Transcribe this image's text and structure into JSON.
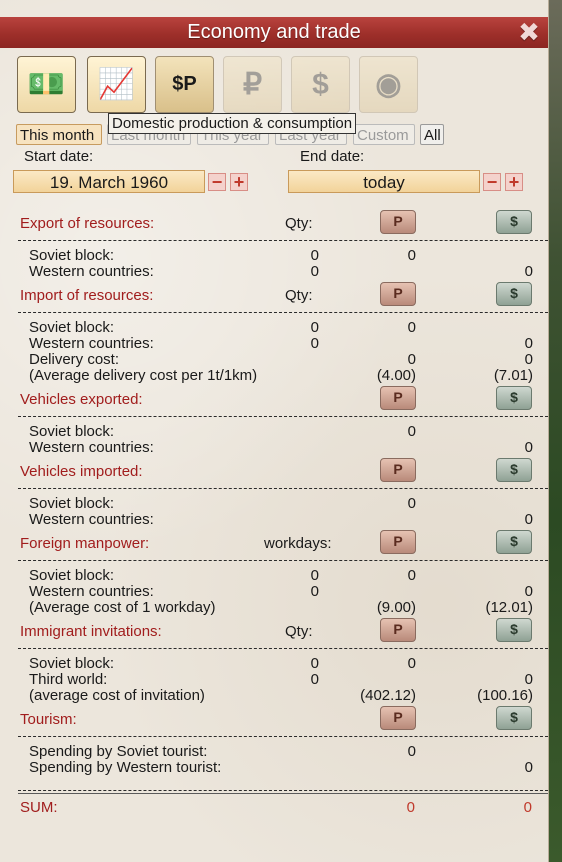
{
  "window": {
    "title": "Economy and trade",
    "close_glyph": "✖"
  },
  "tabs": [
    {
      "name": "money-icon",
      "glyph": "💵",
      "state": "active"
    },
    {
      "name": "domestic-production-icon",
      "glyph": "📈",
      "state": "hover"
    },
    {
      "name": "price-tags-icon",
      "glyph": "$P",
      "state": "normal"
    },
    {
      "name": "rouble-icon",
      "glyph": "₽",
      "state": "dim"
    },
    {
      "name": "dollar-icon",
      "glyph": "$",
      "state": "dim"
    },
    {
      "name": "roulette-icon",
      "glyph": "◉",
      "state": "dim"
    }
  ],
  "tooltip": "Domestic production & consumption",
  "range_buttons": [
    "This month",
    "Last month",
    "This year",
    "Last year",
    "Custom",
    "All"
  ],
  "dates": {
    "start_label": "Start date:",
    "end_label": "End date:",
    "start_value": "19. March 1960",
    "end_value": "today",
    "minus": "−",
    "plus": "+"
  },
  "icons": {
    "rouble": "P",
    "dollar": "$"
  },
  "sections": [
    {
      "title": "Export of resources:",
      "qty_label": "Qty:",
      "rows": [
        {
          "label": "Soviet block:",
          "qty": "0",
          "rub": "0",
          "usd": ""
        },
        {
          "label": "Western countries:",
          "qty": "0",
          "rub": "",
          "usd": "0"
        }
      ]
    },
    {
      "title": "Import of resources:",
      "qty_label": "Qty:",
      "rows": [
        {
          "label": "Soviet block:",
          "qty": "0",
          "rub": "0",
          "usd": ""
        },
        {
          "label": "Western countries:",
          "qty": "0",
          "rub": "",
          "usd": "0"
        },
        {
          "label": "Delivery cost:",
          "qty": "",
          "rub": "0",
          "usd": "0"
        },
        {
          "label": "(Average delivery cost per 1t/1km)",
          "qty": "",
          "rub": "(4.00)",
          "usd": "(7.01)"
        }
      ]
    },
    {
      "title": "Vehicles exported:",
      "qty_label": "",
      "rows": [
        {
          "label": "Soviet block:",
          "qty": "",
          "rub": "0",
          "usd": ""
        },
        {
          "label": "Western countries:",
          "qty": "",
          "rub": "",
          "usd": "0"
        }
      ]
    },
    {
      "title": "Vehicles imported:",
      "qty_label": "",
      "rows": [
        {
          "label": "Soviet block:",
          "qty": "",
          "rub": "0",
          "usd": ""
        },
        {
          "label": "Western countries:",
          "qty": "",
          "rub": "",
          "usd": "0"
        }
      ]
    },
    {
      "title": "Foreign manpower:",
      "qty_label": "workdays:",
      "rows": [
        {
          "label": "Soviet block:",
          "qty": "0",
          "rub": "0",
          "usd": ""
        },
        {
          "label": "Western countries:",
          "qty": "0",
          "rub": "",
          "usd": "0"
        },
        {
          "label": "(Average cost of 1 workday)",
          "qty": "",
          "rub": "(9.00)",
          "usd": "(12.01)"
        }
      ]
    },
    {
      "title": "Immigrant invitations:",
      "qty_label": "Qty:",
      "rows": [
        {
          "label": "Soviet block:",
          "qty": "0",
          "rub": "0",
          "usd": ""
        },
        {
          "label": "Third world:",
          "qty": "0",
          "rub": "",
          "usd": "0"
        },
        {
          "label": "(average cost of invitation)",
          "qty": "",
          "rub": "(402.12)",
          "usd": "(100.16)"
        }
      ]
    },
    {
      "title": "Tourism:",
      "qty_label": "",
      "rows": [
        {
          "label": "Spending by Soviet tourist:",
          "qty": "",
          "rub": "0",
          "usd": ""
        },
        {
          "label": "Spending by Western tourist:",
          "qty": "",
          "rub": "",
          "usd": "0"
        }
      ]
    }
  ],
  "sum": {
    "label": "SUM:",
    "rub": "0",
    "usd": "0"
  },
  "colors": {
    "title_bar": "#a3322d",
    "section_title": "#a11d1d",
    "sum_value": "#c0392b"
  }
}
